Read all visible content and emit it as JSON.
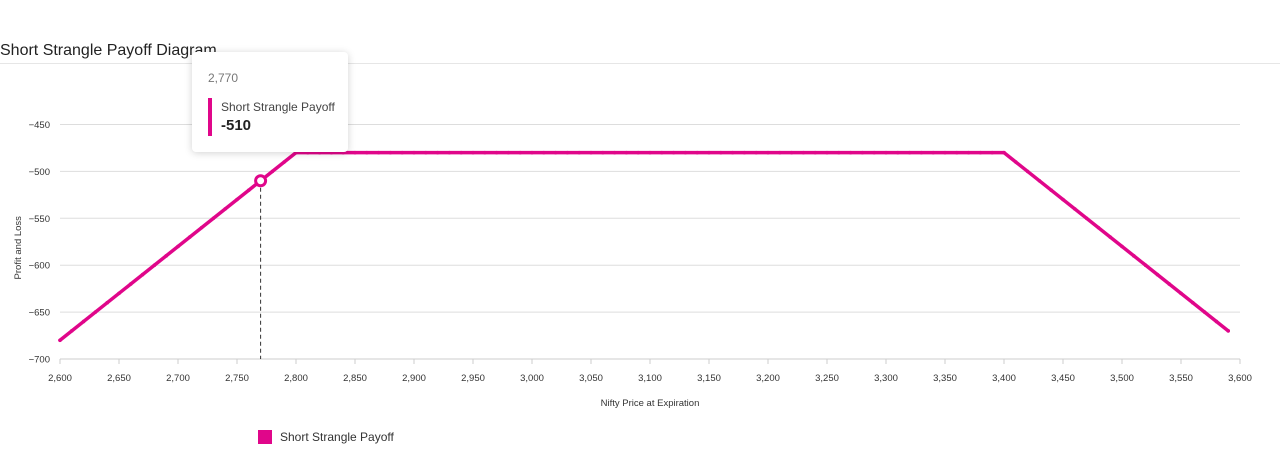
{
  "title": "Short Strangle Payoff Diagram",
  "colors": {
    "series": "#e0068a",
    "grid": "#dddddd",
    "crosshair": "#333333"
  },
  "tooltip": {
    "x_label": "2,770",
    "series_name": "Short Strangle Payoff",
    "value_label": "-510"
  },
  "legend": {
    "label": "Short Strangle Payoff"
  },
  "chart_data": {
    "type": "line",
    "xlabel": "Nifty Price at Expiration",
    "ylabel": "Profit and Loss",
    "xlim": [
      2600,
      3600
    ],
    "ylim": [
      -700,
      -450
    ],
    "x_ticks": [
      2600,
      2650,
      2700,
      2750,
      2800,
      2850,
      2900,
      2950,
      3000,
      3050,
      3100,
      3150,
      3200,
      3250,
      3300,
      3350,
      3400,
      3450,
      3500,
      3550,
      3600
    ],
    "x_tick_labels": [
      "2,600",
      "2,650",
      "2,700",
      "2,750",
      "2,800",
      "2,850",
      "2,900",
      "2,950",
      "3,000",
      "3,050",
      "3,100",
      "3,150",
      "3,200",
      "3,250",
      "3,300",
      "3,350",
      "3,400",
      "3,450",
      "3,500",
      "3,550",
      "3,600"
    ],
    "y_ticks": [
      -700,
      -650,
      -600,
      -550,
      -500,
      -450
    ],
    "y_tick_labels": [
      "−700",
      "−650",
      "−600",
      "−550",
      "−500",
      "−450"
    ],
    "grid": true,
    "legend_position": "bottom-left",
    "series": [
      {
        "name": "Short Strangle Payoff",
        "points": [
          [
            2600,
            -680
          ],
          [
            2800,
            -480
          ],
          [
            3400,
            -480
          ],
          [
            3590,
            -670
          ]
        ]
      }
    ],
    "highlight": {
      "x": 2770,
      "y": -510
    }
  }
}
